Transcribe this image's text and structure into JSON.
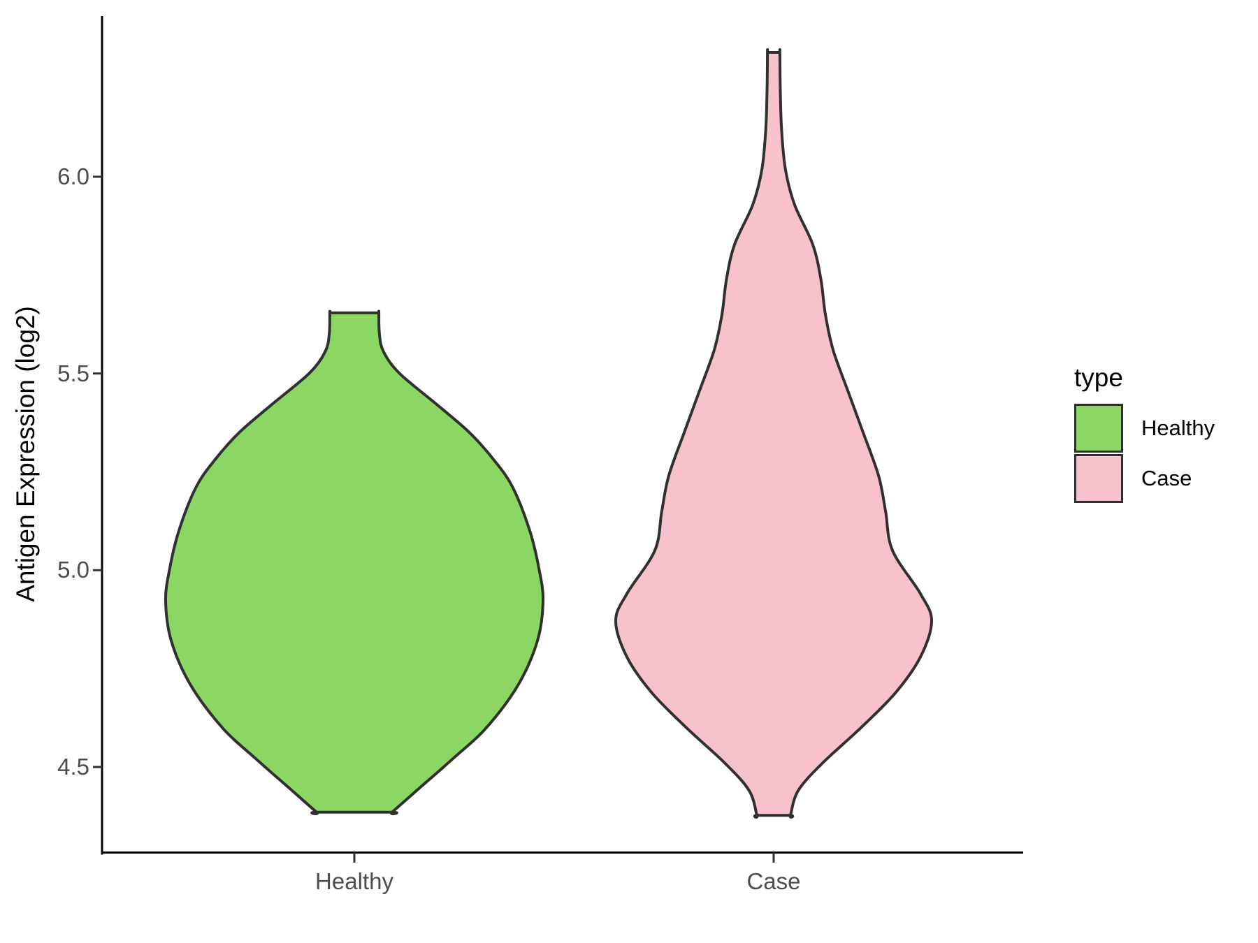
{
  "figure": {
    "background": "#ffffff",
    "axis_line_color": "#000000",
    "tick_mark_color": "#333333",
    "tick_label_color": "#4d4d4d"
  },
  "y_axis": {
    "title": "Antigen Expression (log2)",
    "tick_labels": [
      "6.0",
      "5.5",
      "5.0",
      "4.5"
    ],
    "tick_values": [
      6.0,
      5.5,
      5.0,
      4.5
    ]
  },
  "x_axis": {
    "tick_labels": [
      "Healthy",
      "Case"
    ]
  },
  "legend": {
    "title": "type",
    "entries": [
      {
        "label": "Healthy",
        "color": "#8CD763",
        "border": "#303030"
      },
      {
        "label": "Case",
        "color": "#F7C2CC",
        "border": "#303030"
      }
    ]
  },
  "chart_data": {
    "type": "violin",
    "title": "",
    "xlabel": "",
    "ylabel": "Antigen Expression (log2)",
    "categories": [
      "Healthy",
      "Case"
    ],
    "y_ticks": [
      4.5,
      5.0,
      5.5,
      6.0
    ],
    "ylim_shown": [
      4.25,
      6.4
    ],
    "legend_title": "type",
    "legend_position": "right",
    "grid": false,
    "series": [
      {
        "name": "Healthy",
        "fill": "#8CD763",
        "outline": "#303030",
        "value_range": [
          4.39,
          5.65
        ],
        "peak_value": 4.92,
        "peak_relative_width": 1.0,
        "profile": [
          [
            5.654,
            0.13
          ],
          [
            5.6,
            0.133
          ],
          [
            5.555,
            0.155
          ],
          [
            5.5,
            0.24
          ],
          [
            5.42,
            0.44
          ],
          [
            5.35,
            0.61
          ],
          [
            5.28,
            0.74
          ],
          [
            5.21,
            0.84
          ],
          [
            5.1,
            0.93
          ],
          [
            5.0,
            0.98
          ],
          [
            4.92,
            1.0
          ],
          [
            4.82,
            0.97
          ],
          [
            4.71,
            0.87
          ],
          [
            4.6,
            0.7
          ],
          [
            4.52,
            0.52
          ],
          [
            4.44,
            0.33
          ],
          [
            4.385,
            0.2
          ]
        ]
      },
      {
        "name": "Case",
        "fill": "#F7C2CC",
        "outline": "#303030",
        "value_range": [
          4.38,
          6.32
        ],
        "peak_value": 4.87,
        "peak_relative_width": 0.837,
        "profile": [
          [
            6.316,
            0.033
          ],
          [
            6.22,
            0.035
          ],
          [
            6.12,
            0.042
          ],
          [
            6.02,
            0.062
          ],
          [
            5.93,
            0.11
          ],
          [
            5.828,
            0.207
          ],
          [
            5.74,
            0.25
          ],
          [
            5.65,
            0.274
          ],
          [
            5.56,
            0.315
          ],
          [
            5.46,
            0.39
          ],
          [
            5.35,
            0.474
          ],
          [
            5.24,
            0.556
          ],
          [
            5.15,
            0.593
          ],
          [
            5.05,
            0.63
          ],
          [
            4.94,
            0.778
          ],
          [
            4.871,
            0.837
          ],
          [
            4.78,
            0.778
          ],
          [
            4.69,
            0.648
          ],
          [
            4.6,
            0.463
          ],
          [
            4.51,
            0.259
          ],
          [
            4.44,
            0.13
          ],
          [
            4.377,
            0.089
          ]
        ]
      }
    ]
  }
}
